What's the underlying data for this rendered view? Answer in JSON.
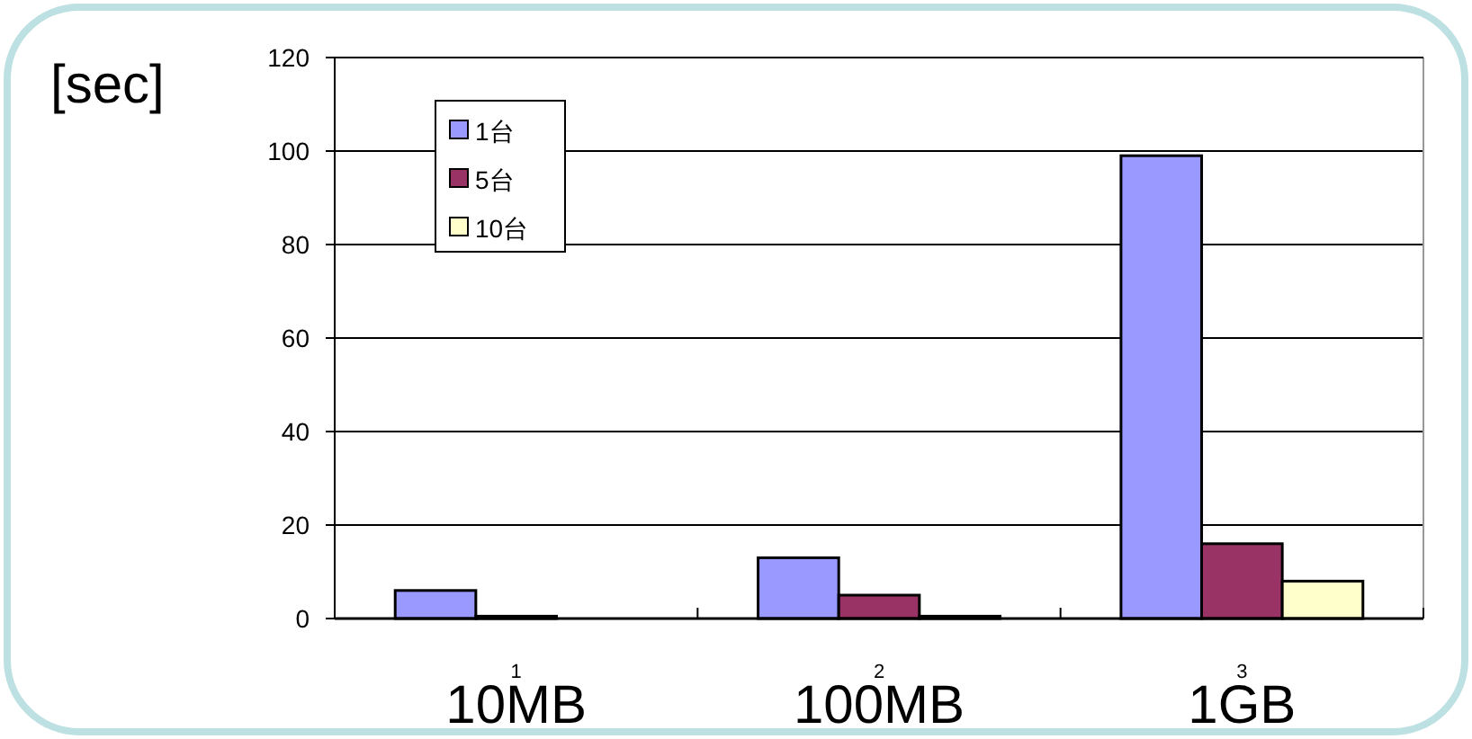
{
  "chart_data": {
    "type": "bar",
    "ylabel": "[sec]",
    "x": [
      1,
      2,
      3
    ],
    "xlim": [
      0.5,
      3.5
    ],
    "xticks": [
      1,
      2,
      3
    ],
    "ylim": [
      0,
      120
    ],
    "yticks": [
      0,
      20,
      40,
      60,
      80,
      100,
      120
    ],
    "grid": "y",
    "legend": "top left",
    "series": [
      {
        "name": "1台",
        "color": "#9999ff",
        "values": [
          6,
          13,
          99
        ]
      },
      {
        "name": "5台",
        "color": "#993366",
        "values": [
          0.5,
          5,
          16
        ]
      },
      {
        "name": "10台",
        "color": "#ffffcc",
        "values": [
          0,
          0.5,
          8
        ]
      }
    ],
    "annotations": [
      "10MB",
      "100MB",
      "1GB"
    ]
  }
}
